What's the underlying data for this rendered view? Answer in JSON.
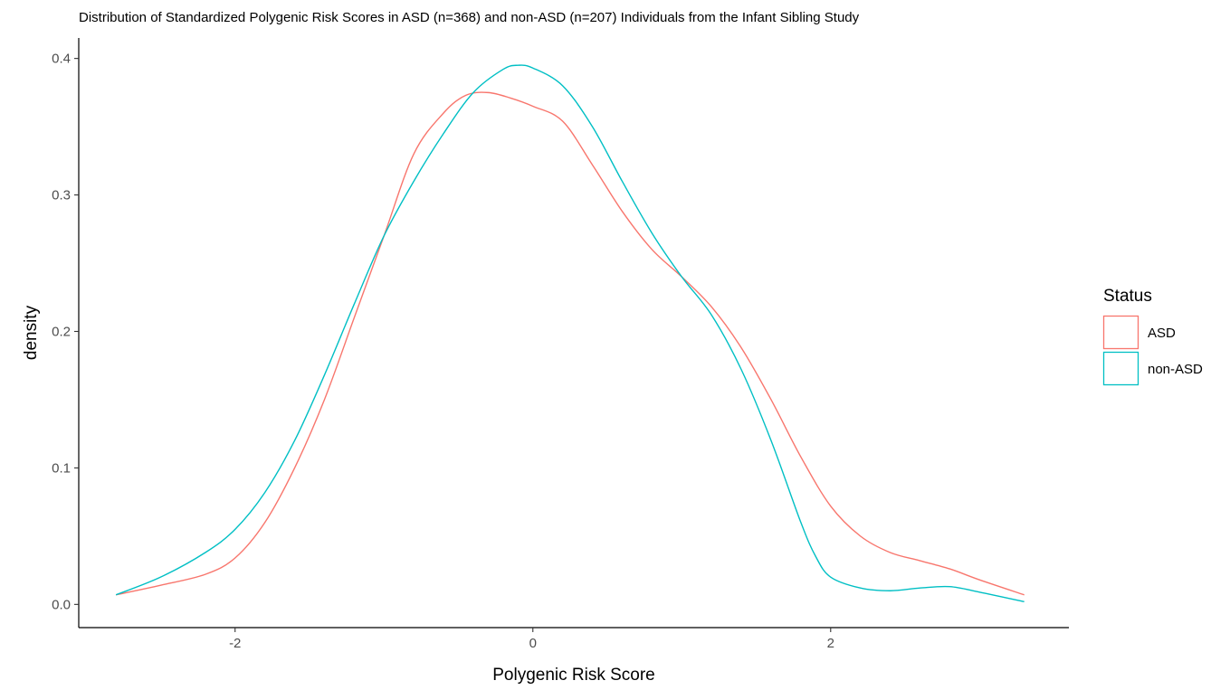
{
  "chart_data": {
    "type": "line",
    "title": "Distribution of Standardized Polygenic Risk Scores in ASD (n=368) and non-ASD (n=207) Individuals from the Infant Sibling Study",
    "xlabel": "Polygenic Risk Score",
    "ylabel": "density",
    "xlim": [
      -3.05,
      3.6
    ],
    "ylim": [
      -0.017,
      0.415
    ],
    "x_ticks": [
      -2,
      0,
      2
    ],
    "x_tick_labels": [
      "-2",
      "0",
      "2"
    ],
    "y_ticks": [
      0.0,
      0.1,
      0.2,
      0.3,
      0.4
    ],
    "y_tick_labels": [
      "0.0",
      "0.1",
      "0.2",
      "0.3",
      "0.4"
    ],
    "grid": false,
    "legend": {
      "title": "Status",
      "position": "right"
    },
    "series": [
      {
        "name": "ASD",
        "color": "#F8766D",
        "x": [
          -2.8,
          -2.5,
          -2.2,
          -2.0,
          -1.8,
          -1.6,
          -1.4,
          -1.2,
          -1.0,
          -0.8,
          -0.6,
          -0.45,
          -0.3,
          -0.15,
          0.0,
          0.2,
          0.4,
          0.6,
          0.8,
          1.0,
          1.2,
          1.4,
          1.6,
          1.8,
          2.0,
          2.2,
          2.4,
          2.6,
          2.8,
          3.0,
          3.3
        ],
        "y": [
          0.007,
          0.014,
          0.022,
          0.034,
          0.06,
          0.1,
          0.15,
          0.21,
          0.27,
          0.33,
          0.36,
          0.373,
          0.375,
          0.371,
          0.365,
          0.354,
          0.322,
          0.288,
          0.26,
          0.24,
          0.218,
          0.188,
          0.15,
          0.108,
          0.072,
          0.05,
          0.038,
          0.032,
          0.026,
          0.018,
          0.007
        ]
      },
      {
        "name": "non-ASD",
        "color": "#00BFC4",
        "x": [
          -2.8,
          -2.5,
          -2.2,
          -2.0,
          -1.8,
          -1.6,
          -1.4,
          -1.2,
          -1.0,
          -0.8,
          -0.6,
          -0.4,
          -0.2,
          -0.1,
          0.0,
          0.2,
          0.4,
          0.6,
          0.8,
          1.0,
          1.2,
          1.4,
          1.6,
          1.8,
          1.9,
          2.0,
          2.2,
          2.4,
          2.6,
          2.8,
          3.0,
          3.3
        ],
        "y": [
          0.007,
          0.02,
          0.038,
          0.055,
          0.082,
          0.12,
          0.168,
          0.22,
          0.27,
          0.31,
          0.345,
          0.375,
          0.392,
          0.395,
          0.393,
          0.38,
          0.35,
          0.31,
          0.272,
          0.24,
          0.212,
          0.172,
          0.12,
          0.06,
          0.035,
          0.02,
          0.012,
          0.01,
          0.012,
          0.013,
          0.009,
          0.002
        ]
      }
    ]
  }
}
